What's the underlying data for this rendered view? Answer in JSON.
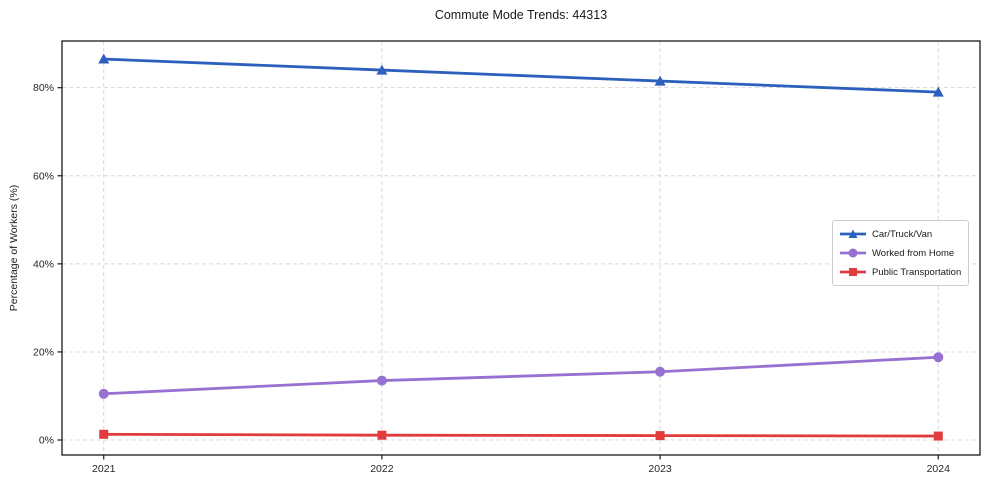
{
  "title": "Commute Mode Trends: 44313",
  "chart_data": {
    "type": "line",
    "title": "Commute Mode Trends: 44313",
    "xlabel": "",
    "ylabel": "Percentage of Workers (%)",
    "x": [
      2021,
      2022,
      2023,
      2024
    ],
    "x_tick_labels": [
      "2021",
      "2022",
      "2023",
      "2024"
    ],
    "y_ticks": [
      0,
      20,
      40,
      60,
      80
    ],
    "y_tick_labels": [
      "0%",
      "20%",
      "40%",
      "60%",
      "80%"
    ],
    "xlim": [
      2020.85,
      2024.15
    ],
    "ylim": [
      -3.4,
      90.6
    ],
    "grid": "dashed both",
    "legend_position": "right-center",
    "series": [
      {
        "name": "Car/Truck/Van",
        "values": [
          86.5,
          84.0,
          81.5,
          79.0
        ],
        "color": "#2d60bd",
        "marker": "triangle"
      },
      {
        "name": "Worked from Home",
        "values": [
          10.5,
          13.5,
          15.5,
          18.8
        ],
        "color": "#9671d2",
        "marker": "circle"
      },
      {
        "name": "Public Transportation",
        "values": [
          1.3,
          1.1,
          1.0,
          0.9
        ],
        "color": "#e23b3c",
        "marker": "square"
      }
    ]
  },
  "colors": {
    "background": "#ffffff",
    "grid": "#d8d8d8",
    "spine": "#1a1a1a",
    "tick_text": "#262626",
    "legend_border": "#cccccc"
  }
}
